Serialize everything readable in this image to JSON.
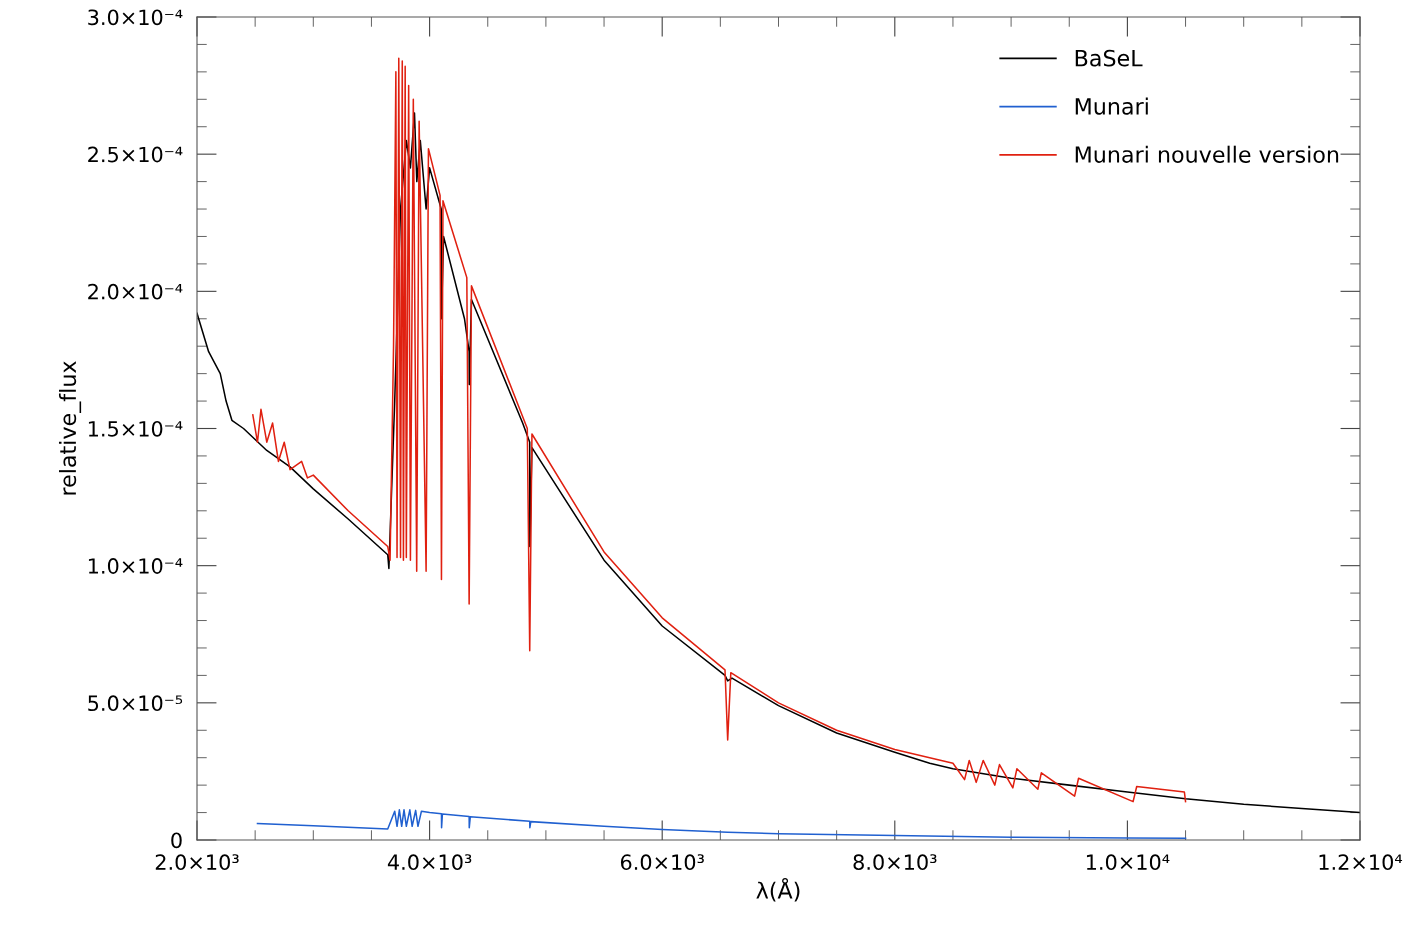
{
  "chart_data": {
    "type": "line",
    "xlabel": "λ(Å)",
    "ylabel": "relative_flux",
    "xlim": [
      2000,
      12000
    ],
    "ylim": [
      0,
      0.0003
    ],
    "xticks": [
      {
        "value": 2000,
        "label": "2.0×10³"
      },
      {
        "value": 2500,
        "label": null
      },
      {
        "value": 3000,
        "label": null
      },
      {
        "value": 3500,
        "label": null
      },
      {
        "value": 4000,
        "label": "4.0×10³"
      },
      {
        "value": 4500,
        "label": null
      },
      {
        "value": 5000,
        "label": null
      },
      {
        "value": 5500,
        "label": null
      },
      {
        "value": 6000,
        "label": "6.0×10³"
      },
      {
        "value": 6500,
        "label": null
      },
      {
        "value": 7000,
        "label": null
      },
      {
        "value": 7500,
        "label": null
      },
      {
        "value": 8000,
        "label": "8.0×10³"
      },
      {
        "value": 8500,
        "label": null
      },
      {
        "value": 9000,
        "label": null
      },
      {
        "value": 9500,
        "label": null
      },
      {
        "value": 10000,
        "label": "1.0×10⁴"
      },
      {
        "value": 10500,
        "label": null
      },
      {
        "value": 11000,
        "label": null
      },
      {
        "value": 11500,
        "label": null
      },
      {
        "value": 12000,
        "label": "1.2×10⁴"
      }
    ],
    "yticks": [
      {
        "value": 0,
        "label": "0"
      },
      {
        "value": 1e-05,
        "label": null
      },
      {
        "value": 2e-05,
        "label": null
      },
      {
        "value": 3e-05,
        "label": null
      },
      {
        "value": 4e-05,
        "label": null
      },
      {
        "value": 5e-05,
        "label": "5.0×10⁻⁵"
      },
      {
        "value": 6e-05,
        "label": null
      },
      {
        "value": 7e-05,
        "label": null
      },
      {
        "value": 8e-05,
        "label": null
      },
      {
        "value": 9e-05,
        "label": null
      },
      {
        "value": 0.0001,
        "label": "1.0×10⁻⁴"
      },
      {
        "value": 0.00011,
        "label": null
      },
      {
        "value": 0.00012,
        "label": null
      },
      {
        "value": 0.00013,
        "label": null
      },
      {
        "value": 0.00014,
        "label": null
      },
      {
        "value": 0.00015,
        "label": "1.5×10⁻⁴"
      },
      {
        "value": 0.00016,
        "label": null
      },
      {
        "value": 0.00017,
        "label": null
      },
      {
        "value": 0.00018,
        "label": null
      },
      {
        "value": 0.00019,
        "label": null
      },
      {
        "value": 0.0002,
        "label": "2.0×10⁻⁴"
      },
      {
        "value": 0.00021,
        "label": null
      },
      {
        "value": 0.00022,
        "label": null
      },
      {
        "value": 0.00023,
        "label": null
      },
      {
        "value": 0.00024,
        "label": null
      },
      {
        "value": 0.00025,
        "label": "2.5×10⁻⁴"
      },
      {
        "value": 0.00026,
        "label": null
      },
      {
        "value": 0.00027,
        "label": null
      },
      {
        "value": 0.00028,
        "label": null
      },
      {
        "value": 0.00029,
        "label": null
      },
      {
        "value": 0.0003,
        "label": "3.0×10⁻⁴"
      }
    ],
    "grid": false,
    "legend": "top right",
    "marker": "none",
    "line_style": "solid",
    "series": [
      {
        "name": "BaSeL",
        "color": "#000000",
        "x": [
          2000,
          2100,
          2200,
          2250,
          2300,
          2400,
          2500,
          2600,
          2800,
          3000,
          3300,
          3640,
          3650,
          3700,
          3750,
          3800,
          3835,
          3870,
          3890,
          3920,
          3970,
          4000,
          4100,
          4102,
          4120,
          4300,
          4340,
          4341,
          4360,
          4800,
          4861,
          4862,
          4880,
          5500,
          6000,
          6540,
          6563,
          6600,
          7000,
          7500,
          8000,
          8300,
          8500,
          9000,
          9500,
          10000,
          10500,
          11000,
          11500,
          12000
        ],
        "values": [
          0.000192,
          0.000178,
          0.00017,
          0.00016,
          0.000153,
          0.00015,
          0.000146,
          0.000142,
          0.000136,
          0.000128,
          0.000117,
          0.000104,
          9.9e-05,
          0.00016,
          0.00023,
          0.000255,
          0.000245,
          0.000265,
          0.00024,
          0.000255,
          0.00023,
          0.000245,
          0.00023,
          0.00019,
          0.00022,
          0.00019,
          0.000178,
          0.000166,
          0.000197,
          0.000152,
          0.000145,
          0.000107,
          0.000143,
          0.000102,
          7.8e-05,
          6e-05,
          5.8e-05,
          5.9e-05,
          4.9e-05,
          3.9e-05,
          3.2e-05,
          2.8e-05,
          2.6e-05,
          2.25e-05,
          2e-05,
          1.75e-05,
          1.5e-05,
          1.3e-05,
          1.15e-05,
          1e-05
        ]
      },
      {
        "name": "Munari",
        "color": "#2060d0",
        "x": [
          2520,
          3000,
          3640,
          3700,
          3720,
          3740,
          3760,
          3780,
          3800,
          3830,
          3850,
          3880,
          3900,
          3930,
          4000,
          4102,
          4103,
          4110,
          4340,
          4341,
          4350,
          4861,
          4862,
          4870,
          5500,
          6000,
          6563,
          7000,
          8000,
          9000,
          10000,
          10500
        ],
        "values": [
          6e-06,
          5.2e-06,
          4e-06,
          1.05e-05,
          5e-06,
          1.1e-05,
          5e-06,
          1.1e-05,
          5e-06,
          1.1e-05,
          5e-06,
          1.08e-05,
          5e-06,
          1.05e-05,
          1e-05,
          9.6e-06,
          4.5e-06,
          9.5e-06,
          8.6e-06,
          4.5e-06,
          8.5e-06,
          6.8e-06,
          4.5e-06,
          6.7e-06,
          5e-06,
          3.8e-06,
          2.8e-06,
          2.3e-06,
          1.6e-06,
          1e-06,
          7e-07,
          6e-07
        ]
      },
      {
        "name": "Munari nouvelle version",
        "color": "#e02010",
        "x": [
          2480,
          2520,
          2550,
          2600,
          2650,
          2700,
          2750,
          2800,
          2900,
          2950,
          3000,
          3300,
          3640,
          3660,
          3690,
          3710,
          3720,
          3735,
          3750,
          3765,
          3775,
          3790,
          3800,
          3820,
          3835,
          3860,
          3889,
          3910,
          3970,
          3990,
          4090,
          4102,
          4115,
          4320,
          4340,
          4360,
          4840,
          4861,
          4880,
          5500,
          6000,
          6540,
          6563,
          6590,
          7000,
          7500,
          8000,
          8400,
          8500,
          8600,
          8640,
          8700,
          8760,
          8860,
          8900,
          9015,
          9050,
          9230,
          9260,
          9546,
          9580,
          10049,
          10080,
          10490,
          10500
        ],
        "values": [
          0.000155,
          0.000145,
          0.000157,
          0.000145,
          0.000152,
          0.000138,
          0.000145,
          0.000135,
          0.000138,
          0.000132,
          0.000133,
          0.00012,
          0.000107,
          0.000102,
          0.00018,
          0.00028,
          0.000103,
          0.000285,
          0.000103,
          0.000284,
          0.000102,
          0.000282,
          0.000103,
          0.000275,
          0.000102,
          0.00027,
          9.8e-05,
          0.000262,
          9.8e-05,
          0.000252,
          0.000235,
          9.5e-05,
          0.000233,
          0.000205,
          8.6e-05,
          0.000202,
          0.00015,
          6.9e-05,
          0.000148,
          0.000105,
          8.1e-05,
          6.2e-05,
          3.65e-05,
          6.1e-05,
          5e-05,
          4e-05,
          3.3e-05,
          2.9e-05,
          2.8e-05,
          2.2e-05,
          2.9e-05,
          2.1e-05,
          2.9e-05,
          2e-05,
          2.75e-05,
          1.9e-05,
          2.6e-05,
          1.85e-05,
          2.45e-05,
          1.6e-05,
          2.25e-05,
          1.4e-05,
          1.95e-05,
          1.75e-05,
          1.4e-05
        ]
      }
    ]
  }
}
